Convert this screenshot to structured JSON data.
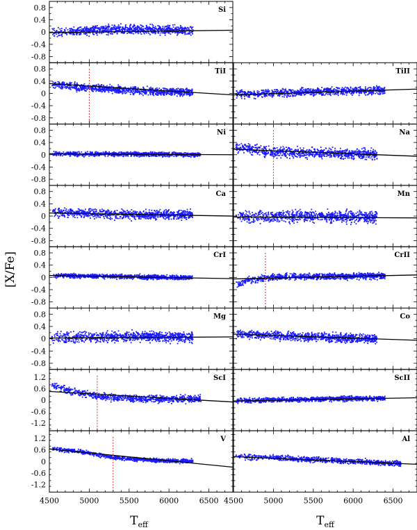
{
  "figure": {
    "ylabel": "[X/Fe]",
    "xlabel_main": "T",
    "xlabel_sub": "eff",
    "x_ticks": [
      4500,
      5000,
      5500,
      6000,
      6500
    ]
  },
  "chart_data": {
    "type": "scatter",
    "xlim": [
      4500,
      6800
    ],
    "grid": false,
    "point_color": "#1a1aff",
    "fit_color": "#000000",
    "cut_color": "#e02020",
    "panels": [
      {
        "label": "Si",
        "col": 0,
        "row": 0,
        "ylim": [
          -1.0,
          1.0
        ],
        "yticks": [
          -0.8,
          -0.4,
          0,
          0.4,
          0.8
        ],
        "fit": {
          "x": [
            4500,
            6800
          ],
          "y": [
            -0.02,
            0.06
          ]
        },
        "cut": null,
        "spread": 0.07,
        "xmax": 6300,
        "n": 900,
        "trend": {
          "x": [
            4500,
            4800,
            5200,
            5600,
            6000,
            6300
          ],
          "y": [
            -0.02,
            0.02,
            0.08,
            0.09,
            0.07,
            0.04
          ]
        }
      },
      {
        "label": "TiI",
        "col": 0,
        "row": 1,
        "ylim": [
          -1.0,
          1.0
        ],
        "yticks": [
          -0.8,
          -0.4,
          0,
          0.4,
          0.8
        ],
        "fit": {
          "x": [
            4500,
            6800
          ],
          "y": [
            0.32,
            -0.05
          ]
        },
        "cut": 5000,
        "spread": 0.06,
        "xmax": 6300,
        "n": 900,
        "trend": {
          "x": [
            4550,
            4800,
            5000,
            5500,
            6000,
            6300
          ],
          "y": [
            0.3,
            0.22,
            0.17,
            0.1,
            0.05,
            0.03
          ]
        }
      },
      {
        "label": "Ni",
        "col": 0,
        "row": 2,
        "ylim": [
          -1.0,
          1.0
        ],
        "yticks": [
          -0.8,
          -0.4,
          0,
          0.4,
          0.8
        ],
        "fit": {
          "x": [
            4500,
            6800
          ],
          "y": [
            0.03,
            0.0
          ]
        },
        "cut": null,
        "spread": 0.035,
        "xmax": 6400,
        "n": 900,
        "trend": {
          "x": [
            4500,
            5000,
            5500,
            6000,
            6400
          ],
          "y": [
            0.03,
            0.02,
            0.02,
            0.01,
            0.0
          ]
        }
      },
      {
        "label": "Ca",
        "col": 0,
        "row": 3,
        "ylim": [
          -1.0,
          1.0
        ],
        "yticks": [
          -0.8,
          -0.4,
          0,
          0.4,
          0.8
        ],
        "fit": {
          "x": [
            4500,
            6800
          ],
          "y": [
            0.1,
            0.0
          ]
        },
        "cut": null,
        "spread": 0.07,
        "xmax": 6300,
        "n": 900,
        "trend": {
          "x": [
            4500,
            4800,
            5200,
            5600,
            6000,
            6300
          ],
          "y": [
            0.12,
            0.1,
            0.06,
            0.04,
            0.04,
            0.03
          ]
        }
      },
      {
        "label": "CrI",
        "col": 0,
        "row": 4,
        "ylim": [
          -1.0,
          1.0
        ],
        "yticks": [
          -0.8,
          -0.4,
          0,
          0.4,
          0.8
        ],
        "fit": {
          "x": [
            4500,
            6800
          ],
          "y": [
            0.06,
            -0.04
          ]
        },
        "cut": null,
        "spread": 0.035,
        "xmax": 6300,
        "n": 900,
        "trend": {
          "x": [
            4500,
            5000,
            5500,
            6000,
            6300
          ],
          "y": [
            0.07,
            0.04,
            0.02,
            0.0,
            -0.01
          ]
        }
      },
      {
        "label": "Mg",
        "col": 0,
        "row": 5,
        "ylim": [
          -1.0,
          1.0
        ],
        "yticks": [
          -0.8,
          -0.4,
          0,
          0.4,
          0.8
        ],
        "fit": {
          "x": [
            4500,
            6800
          ],
          "y": [
            0.02,
            0.06
          ]
        },
        "cut": null,
        "spread": 0.08,
        "xmax": 6300,
        "n": 900,
        "trend": {
          "x": [
            4500,
            5000,
            5500,
            6000,
            6300
          ],
          "y": [
            0.03,
            0.05,
            0.08,
            0.06,
            0.04
          ]
        }
      },
      {
        "label": "ScI",
        "col": 0,
        "row": 6,
        "ylim": [
          -1.6,
          1.6
        ],
        "yticks": [
          -1.2,
          -0.6,
          0,
          0.6,
          1.2
        ],
        "fit": {
          "x": [
            4500,
            6800
          ],
          "y": [
            0.45,
            -0.1
          ]
        },
        "cut": 5100,
        "spread": 0.09,
        "xmax": 6400,
        "n": 800,
        "trend": {
          "x": [
            4550,
            4800,
            5100,
            5500,
            6000,
            6400
          ],
          "y": [
            0.7,
            0.45,
            0.2,
            0.08,
            0.05,
            0.05
          ]
        }
      },
      {
        "label": "V",
        "col": 0,
        "row": 7,
        "ylim": [
          -1.6,
          1.6
        ],
        "yticks": [
          -1.2,
          -0.6,
          0,
          0.6,
          1.2
        ],
        "fit": {
          "x": [
            4500,
            6800
          ],
          "y": [
            0.65,
            -0.3
          ]
        },
        "cut": 5300,
        "spread": 0.05,
        "xmax": 6300,
        "n": 800,
        "trend": {
          "x": [
            4550,
            4900,
            5300,
            5700,
            6000,
            6300
          ],
          "y": [
            0.65,
            0.5,
            0.2,
            0.08,
            0.03,
            0.0
          ]
        }
      },
      {
        "label": "TiII",
        "col": 1,
        "row": 1,
        "ylim": [
          -1.0,
          1.0
        ],
        "yticks": [
          -0.8,
          -0.4,
          0,
          0.4,
          0.8
        ],
        "fit": {
          "x": [
            4500,
            6800
          ],
          "y": [
            -0.05,
            0.14
          ]
        },
        "cut": null,
        "spread": 0.06,
        "xmax": 6400,
        "n": 900,
        "trend": {
          "x": [
            4500,
            5000,
            5500,
            6000,
            6400
          ],
          "y": [
            -0.03,
            0.0,
            0.05,
            0.08,
            0.1
          ]
        }
      },
      {
        "label": "Na",
        "col": 1,
        "row": 2,
        "ylim": [
          -1.0,
          1.0
        ],
        "yticks": [
          -0.8,
          -0.4,
          0,
          0.4,
          0.8
        ],
        "fit": {
          "x": [
            4500,
            6800
          ],
          "y": [
            0.18,
            -0.05
          ]
        },
        "cut": 5000,
        "spread": 0.08,
        "xmax": 6300,
        "n": 900,
        "trend": {
          "x": [
            4550,
            4800,
            5000,
            5500,
            6000,
            6300
          ],
          "y": [
            0.25,
            0.15,
            0.08,
            0.05,
            0.03,
            0.0
          ]
        }
      },
      {
        "label": "Mn",
        "col": 1,
        "row": 3,
        "ylim": [
          -1.0,
          1.0
        ],
        "yticks": [
          -0.8,
          -0.4,
          0,
          0.4,
          0.8
        ],
        "fit": {
          "x": [
            4500,
            6800
          ],
          "y": [
            -0.03,
            -0.06
          ]
        },
        "cut": null,
        "spread": 0.09,
        "xmax": 6300,
        "n": 900,
        "trend": {
          "x": [
            4500,
            5000,
            5500,
            6000,
            6300
          ],
          "y": [
            -0.03,
            -0.02,
            0.0,
            -0.02,
            -0.04
          ]
        }
      },
      {
        "label": "CrII",
        "col": 1,
        "row": 4,
        "ylim": [
          -1.0,
          1.0
        ],
        "yticks": [
          -0.8,
          -0.4,
          0,
          0.4,
          0.8
        ],
        "fit": {
          "x": [
            4500,
            6800
          ],
          "y": [
            -0.05,
            0.08
          ]
        },
        "cut": 4900,
        "spread": 0.05,
        "xmax": 6400,
        "n": 900,
        "trend": {
          "x": [
            4550,
            4700,
            4900,
            5200,
            6000,
            6400
          ],
          "y": [
            -0.25,
            -0.1,
            -0.02,
            0.02,
            0.04,
            0.05
          ]
        }
      },
      {
        "label": "Co",
        "col": 1,
        "row": 5,
        "ylim": [
          -1.0,
          1.0
        ],
        "yticks": [
          -0.8,
          -0.4,
          0,
          0.4,
          0.8
        ],
        "fit": {
          "x": [
            4500,
            6800
          ],
          "y": [
            0.15,
            -0.05
          ]
        },
        "cut": null,
        "spread": 0.07,
        "xmax": 6300,
        "n": 900,
        "trend": {
          "x": [
            4500,
            5000,
            5500,
            6000,
            6300
          ],
          "y": [
            0.15,
            0.1,
            0.06,
            0.02,
            0.0
          ]
        }
      },
      {
        "label": "ScII",
        "col": 1,
        "row": 6,
        "ylim": [
          -1.6,
          1.6
        ],
        "yticks": [
          -1.2,
          -0.6,
          0,
          0.6,
          1.2
        ],
        "fit": {
          "x": [
            4500,
            6800
          ],
          "y": [
            -0.05,
            0.12
          ]
        },
        "cut": null,
        "spread": 0.06,
        "xmax": 6400,
        "n": 900,
        "trend": {
          "x": [
            4500,
            5000,
            5500,
            6000,
            6400
          ],
          "y": [
            -0.03,
            0.0,
            0.04,
            0.08,
            0.08
          ]
        }
      },
      {
        "label": "Al",
        "col": 1,
        "row": 7,
        "ylim": [
          -1.6,
          1.6
        ],
        "yticks": [
          -1.2,
          -0.6,
          0,
          0.6,
          1.2
        ],
        "fit": {
          "x": [
            4500,
            6800
          ],
          "y": [
            0.25,
            -0.15
          ]
        },
        "cut": null,
        "spread": 0.07,
        "xmax": 6600,
        "n": 800,
        "trend": {
          "x": [
            4500,
            5000,
            5500,
            6000,
            6600
          ],
          "y": [
            0.25,
            0.18,
            0.1,
            0.0,
            -0.12
          ]
        }
      }
    ]
  }
}
